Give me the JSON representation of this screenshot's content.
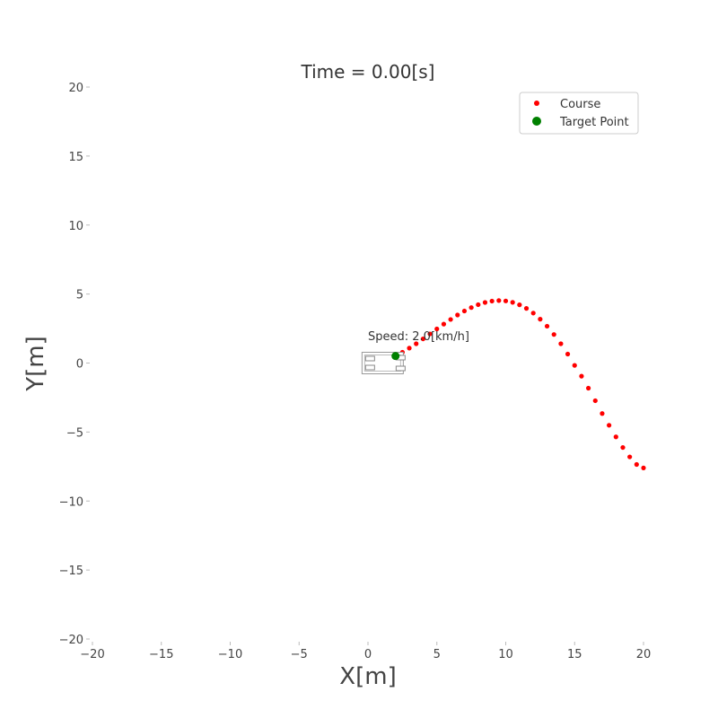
{
  "chart_data": {
    "type": "scatter",
    "title": "Time = 0.00[s]",
    "xlabel": "X[m]",
    "ylabel": "Y[m]",
    "xlim": [
      -20,
      20
    ],
    "ylim": [
      -20,
      20
    ],
    "xticks": [
      -20,
      -15,
      -10,
      -5,
      0,
      5,
      10,
      15,
      20
    ],
    "yticks": [
      -20,
      -15,
      -10,
      -5,
      0,
      5,
      10,
      15,
      20
    ],
    "grid": false,
    "legend_position": "top-right",
    "annotations": [
      {
        "text": "Speed: 2.0[km/h]",
        "x": 0,
        "y": 2
      }
    ],
    "series": [
      {
        "name": "Course",
        "color": "#ff0000",
        "marker": "small-dot",
        "x": [
          0.0,
          0.5,
          1.0,
          1.5,
          2.0,
          2.5,
          3.0,
          3.5,
          4.0,
          4.5,
          5.0,
          5.5,
          6.0,
          6.5,
          7.0,
          7.5,
          8.0,
          8.5,
          9.0,
          9.5,
          10.0,
          10.5,
          11.0,
          11.5,
          12.0,
          12.5,
          13.0,
          13.5,
          14.0,
          14.5,
          15.0,
          15.5,
          16.0,
          16.5,
          17.0,
          17.5,
          18.0,
          18.5,
          19.0,
          19.5,
          20.0
        ],
        "y": [
          0.0,
          0.02,
          0.13,
          0.29,
          0.51,
          0.78,
          1.08,
          1.4,
          1.75,
          2.11,
          2.47,
          2.82,
          3.16,
          3.48,
          3.77,
          4.02,
          4.23,
          4.39,
          4.49,
          4.53,
          4.5,
          4.4,
          4.22,
          3.96,
          3.62,
          3.18,
          2.67,
          2.07,
          1.4,
          0.65,
          -0.17,
          -0.95,
          -1.82,
          -2.73,
          -3.66,
          -4.51,
          -5.35,
          -6.12,
          -6.8,
          -7.35,
          -7.6
        ]
      },
      {
        "name": "Target Point",
        "color": "#008000",
        "marker": "large-dot",
        "x": [
          2.0
        ],
        "y": [
          0.51
        ]
      }
    ],
    "vehicle": {
      "x": 1.0,
      "y": 0.0
    }
  }
}
